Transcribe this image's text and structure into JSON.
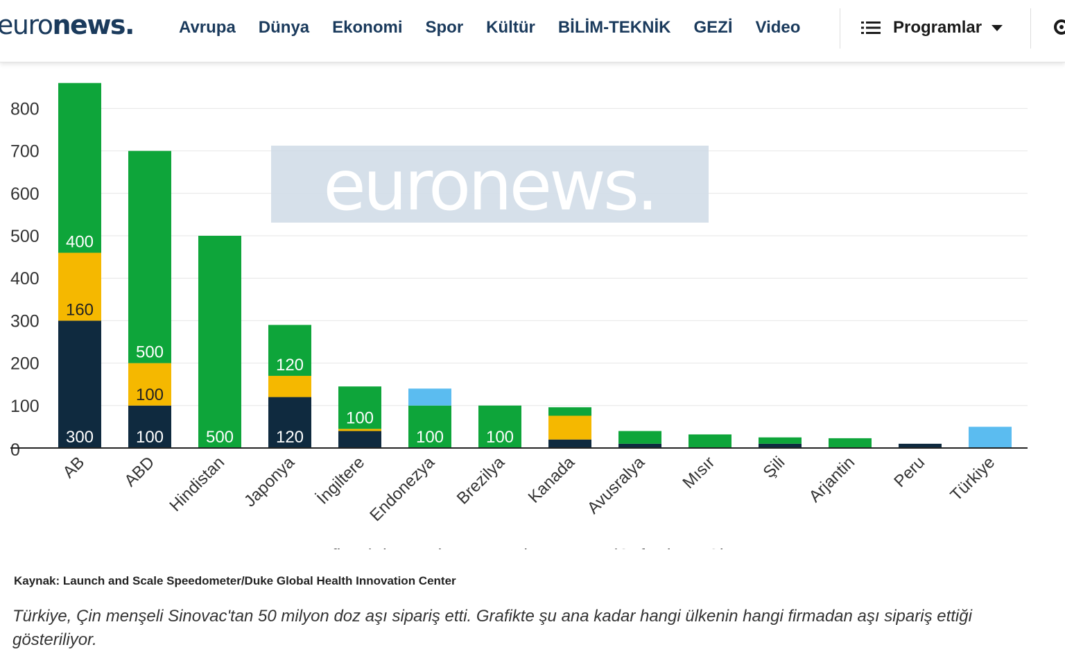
{
  "header": {
    "logo_light": "euro",
    "logo_bold": "news.",
    "nav": [
      "Avrupa",
      "Dünya",
      "Ekonomi",
      "Spor",
      "Kültür",
      "BİLİM-TEKNİK",
      "GEZİ",
      "Video"
    ],
    "programs_label": "Programlar",
    "icons": [
      "menu-icon",
      "chevron-down-icon",
      "gear-icon"
    ]
  },
  "colors": {
    "Pfizer/BioNTech": "#0f2a3f",
    "Moderna": "#f5b800",
    "Az/Oxford": "#0ea53a",
    "Sinovac": "#5bbcf0",
    "brand": "#1a3a5c"
  },
  "chart_data": {
    "type": "bar",
    "stacked": true,
    "categories": [
      "AB",
      "ABD",
      "Hindistan",
      "Japonya",
      "İngiltere",
      "Endonezya",
      "Brezilya",
      "Kanada",
      "Avusralya",
      "Mısır",
      "Şili",
      "Arjantin",
      "Peru",
      "Türkiye"
    ],
    "series": [
      {
        "name": "Pfizer/BioNTech",
        "values": [
          300,
          100,
          0,
          120,
          40,
          0,
          0,
          20,
          10,
          0,
          10,
          0,
          10,
          0
        ]
      },
      {
        "name": "Moderna",
        "values": [
          160,
          100,
          0,
          50,
          5,
          0,
          0,
          56,
          0,
          0,
          0,
          0,
          0,
          0
        ]
      },
      {
        "name": "Az/Oxford",
        "values": [
          400,
          500,
          500,
          120,
          100,
          100,
          100,
          20,
          30,
          32,
          15,
          23,
          0,
          0
        ]
      },
      {
        "name": "Sinovac",
        "values": [
          0,
          0,
          0,
          0,
          0,
          40,
          0,
          0,
          0,
          0,
          0,
          0,
          0,
          50
        ]
      }
    ],
    "data_labels": [
      {
        "category": "AB",
        "series": "Pfizer/BioNTech",
        "text": "300"
      },
      {
        "category": "AB",
        "series": "Moderna",
        "text": "160"
      },
      {
        "category": "AB",
        "series": "Az/Oxford",
        "text": "400"
      },
      {
        "category": "ABD",
        "series": "Pfizer/BioNTech",
        "text": "100"
      },
      {
        "category": "ABD",
        "series": "Moderna",
        "text": "100"
      },
      {
        "category": "ABD",
        "series": "Az/Oxford",
        "text": "500"
      },
      {
        "category": "Hindistan",
        "series": "Az/Oxford",
        "text": "500"
      },
      {
        "category": "Japonya",
        "series": "Pfizer/BioNTech",
        "text": "120"
      },
      {
        "category": "Japonya",
        "series": "Az/Oxford",
        "text": "120"
      },
      {
        "category": "İngiltere",
        "series": "Az/Oxford",
        "text": "100"
      },
      {
        "category": "Endonezya",
        "series": "Az/Oxford",
        "text": "100"
      },
      {
        "category": "Brezilya",
        "series": "Az/Oxford",
        "text": "100"
      }
    ],
    "yticks": [
      0,
      100,
      200,
      300,
      400,
      500,
      600,
      700,
      800
    ],
    "ylim": [
      0,
      860
    ],
    "grid": true,
    "legend_position": "bottom",
    "watermark": "euronews."
  },
  "source": "Kaynak: Launch and Scale Speedometer/Duke Global Health Innovation Center",
  "caption": "Türkiye, Çin menşeli Sinovac'tan 50 milyon doz aşı sipariş etti. Grafikte şu ana kadar hangi ülkenin hangi firmadan aşı sipariş ettiği gösteriliyor."
}
